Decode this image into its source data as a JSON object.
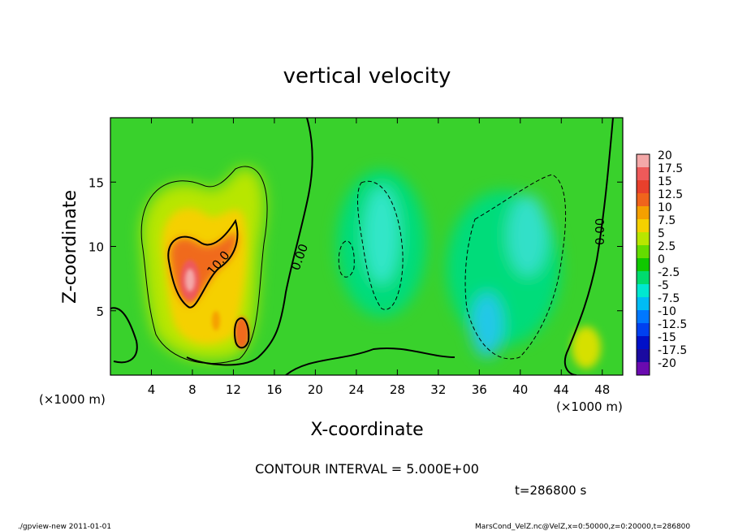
{
  "chart_data": {
    "type": "heatmap",
    "title": "vertical velocity",
    "xlabel": "X-coordinate",
    "ylabel": "Z-coordinate",
    "x_unit": "(×1000 m)",
    "y_unit": "(×1000 m)",
    "xlim": [
      0,
      50
    ],
    "ylim": [
      0,
      20
    ],
    "x_ticks": [
      4,
      8,
      12,
      16,
      20,
      24,
      28,
      32,
      36,
      40,
      44,
      48
    ],
    "y_ticks": [
      5,
      10,
      15
    ],
    "contour_interval_text": "CONTOUR INTERVAL = 5.000E+00",
    "time_text": "t=286800 s",
    "contour_labels": [
      "10.0",
      "0.00",
      "0.00"
    ],
    "colorbar": {
      "levels": [
        "20",
        "17.5",
        "15",
        "12.5",
        "10",
        "7.5",
        "5",
        "2.5",
        "0",
        "-2.5",
        "-5",
        "-7.5",
        "-10",
        "-12.5",
        "-15",
        "-17.5",
        "-20"
      ],
      "colors": [
        "#f4a8a8",
        "#ee5a5a",
        "#e8402c",
        "#f0641c",
        "#f5a000",
        "#f5d000",
        "#b8e600",
        "#64dc00",
        "#10c800",
        "#00dc6e",
        "#00e8d0",
        "#00bcf5",
        "#0078ff",
        "#0040f0",
        "#0010c8",
        "#1a0aa0",
        "#6a0ab0"
      ]
    },
    "features": [
      {
        "kind": "updraft",
        "x": 8,
        "z": 8,
        "w": 20
      },
      {
        "kind": "updraft",
        "x": 13,
        "z": 4.5,
        "w": 12.5
      },
      {
        "kind": "updraft",
        "x": 10,
        "z": 4.5,
        "w": 10
      },
      {
        "kind": "updraft",
        "x": 46,
        "z": 2.5,
        "w": 7.5
      },
      {
        "kind": "downdraft",
        "x": 26,
        "z": 11,
        "w": -7.5
      },
      {
        "kind": "downdraft",
        "x": 37,
        "z": 5,
        "w": -10
      },
      {
        "kind": "downdraft",
        "x": 42,
        "z": 10,
        "w": -5
      }
    ]
  },
  "footer": {
    "left": "./gpview-new   2011-01-01",
    "right": "MarsCond_VelZ.nc@VelZ,x=0:50000,z=0:20000,t=286800"
  }
}
